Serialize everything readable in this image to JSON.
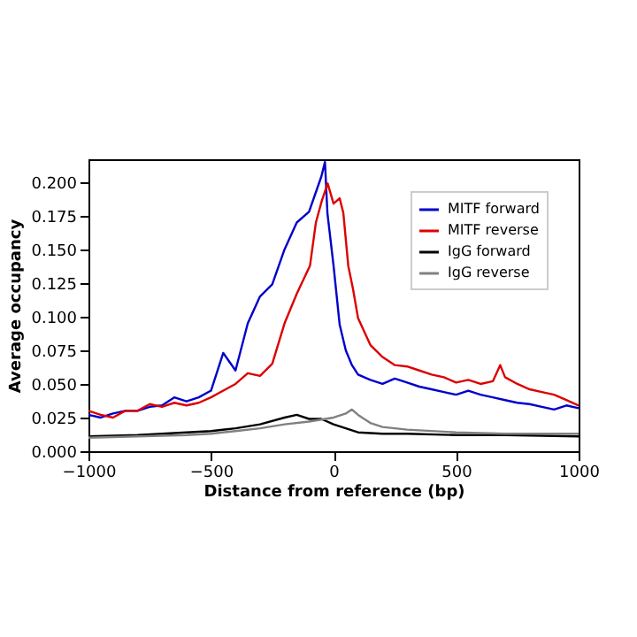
{
  "chart_data": {
    "type": "line",
    "xlabel": "Distance from reference (bp)",
    "ylabel": "Average occupancy",
    "xlim": [
      -1000,
      1000
    ],
    "ylim": [
      0,
      0.217
    ],
    "xticks": [
      {
        "value": -1000,
        "label": "−1000"
      },
      {
        "value": -500,
        "label": "−500"
      },
      0,
      500,
      1000
    ],
    "yticks": [
      {
        "value": 0,
        "label": "0.000"
      },
      {
        "value": 0.025,
        "label": "0.025"
      },
      {
        "value": 0.05,
        "label": "0.050"
      },
      {
        "value": 0.075,
        "label": "0.075"
      },
      {
        "value": 0.1,
        "label": "0.100"
      },
      {
        "value": 0.125,
        "label": "0.125"
      },
      {
        "value": 0.15,
        "label": "0.150"
      },
      {
        "value": 0.175,
        "label": "0.175"
      },
      {
        "value": 0.2,
        "label": "0.200"
      }
    ],
    "grid": false,
    "legend": "top right",
    "series": [
      {
        "name": "MITF forward",
        "color": "#0000cc",
        "x": [
          -1000,
          -950,
          -900,
          -850,
          -800,
          -750,
          -700,
          -650,
          -600,
          -550,
          -500,
          -450,
          -400,
          -350,
          -300,
          -250,
          -200,
          -150,
          -100,
          -50,
          -35,
          -25,
          0,
          25,
          50,
          75,
          100,
          150,
          200,
          250,
          300,
          350,
          400,
          450,
          500,
          550,
          600,
          650,
          700,
          750,
          800,
          850,
          900,
          950,
          1000
        ],
        "values": [
          0.027,
          0.025,
          0.028,
          0.03,
          0.03,
          0.033,
          0.034,
          0.04,
          0.037,
          0.04,
          0.045,
          0.073,
          0.06,
          0.095,
          0.115,
          0.124,
          0.15,
          0.17,
          0.178,
          0.204,
          0.215,
          0.177,
          0.138,
          0.094,
          0.075,
          0.064,
          0.057,
          0.053,
          0.05,
          0.054,
          0.051,
          0.048,
          0.046,
          0.044,
          0.042,
          0.045,
          0.042,
          0.04,
          0.038,
          0.036,
          0.035,
          0.033,
          0.031,
          0.034,
          0.032
        ]
      },
      {
        "name": "MITF reverse",
        "color": "#dd0000",
        "x": [
          -1000,
          -950,
          -900,
          -850,
          -800,
          -750,
          -700,
          -650,
          -600,
          -550,
          -500,
          -450,
          -400,
          -350,
          -300,
          -250,
          -200,
          -150,
          -96,
          -72,
          -48,
          -24,
          0,
          25,
          40,
          60,
          80,
          100,
          150,
          200,
          250,
          300,
          350,
          400,
          450,
          500,
          550,
          600,
          650,
          680,
          700,
          750,
          800,
          850,
          900,
          950,
          1000
        ],
        "values": [
          0.03,
          0.027,
          0.025,
          0.03,
          0.03,
          0.035,
          0.033,
          0.036,
          0.034,
          0.036,
          0.04,
          0.045,
          0.05,
          0.058,
          0.056,
          0.065,
          0.095,
          0.117,
          0.138,
          0.17,
          0.186,
          0.199,
          0.184,
          0.188,
          0.177,
          0.138,
          0.12,
          0.099,
          0.079,
          0.07,
          0.064,
          0.063,
          0.06,
          0.057,
          0.055,
          0.051,
          0.053,
          0.05,
          0.052,
          0.064,
          0.055,
          0.05,
          0.046,
          0.044,
          0.042,
          0.038,
          0.034
        ]
      },
      {
        "name": "IgG forward",
        "color": "#000000",
        "x": [
          -1000,
          -800,
          -600,
          -500,
          -400,
          -300,
          -200,
          -150,
          -100,
          -50,
          0,
          50,
          100,
          200,
          300,
          500,
          700,
          1000
        ],
        "values": [
          0.011,
          0.012,
          0.014,
          0.015,
          0.017,
          0.02,
          0.025,
          0.027,
          0.024,
          0.024,
          0.02,
          0.017,
          0.014,
          0.013,
          0.013,
          0.012,
          0.012,
          0.011
        ]
      },
      {
        "name": "IgG reverse",
        "color": "#808080",
        "x": [
          -1000,
          -800,
          -600,
          -500,
          -400,
          -300,
          -200,
          -100,
          0,
          50,
          75,
          100,
          150,
          200,
          300,
          500,
          700,
          1000
        ],
        "values": [
          0.01,
          0.011,
          0.012,
          0.013,
          0.015,
          0.017,
          0.02,
          0.022,
          0.025,
          0.028,
          0.031,
          0.027,
          0.021,
          0.018,
          0.016,
          0.014,
          0.013,
          0.013
        ]
      }
    ]
  }
}
